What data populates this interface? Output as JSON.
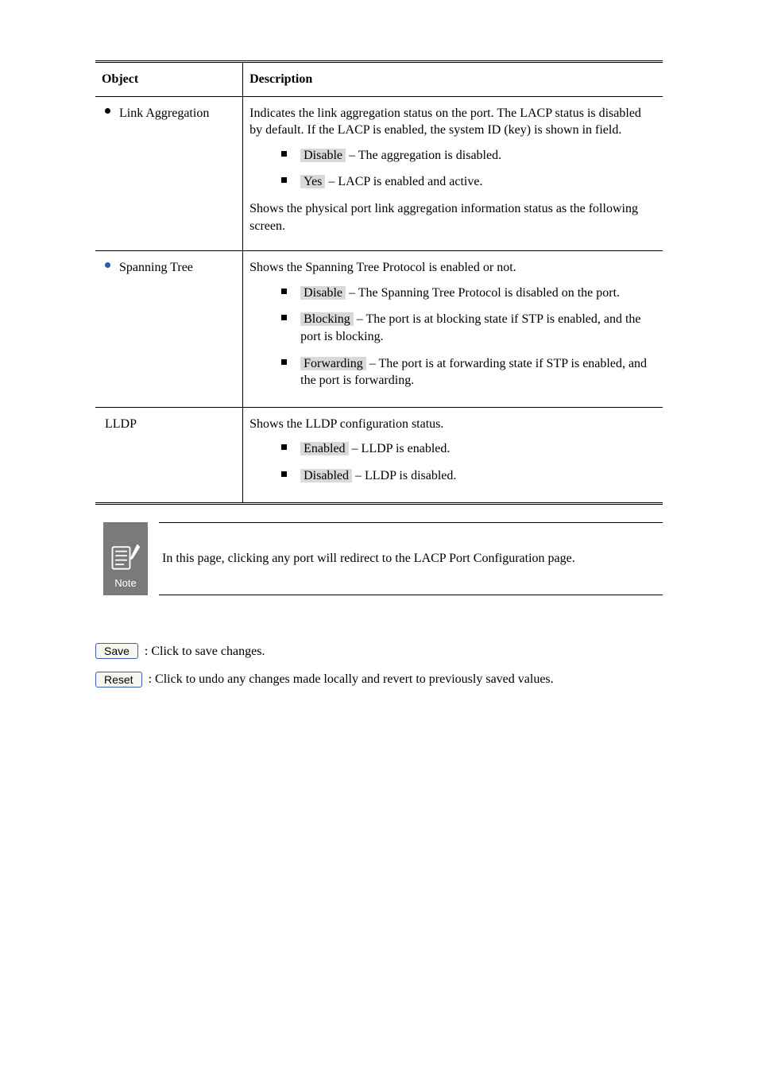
{
  "colors": {
    "text": "#000000",
    "bg": "#ffffff",
    "border": "#000000",
    "shade": "#d9d9d9",
    "note_bg": "#7a7a7a",
    "note_fg": "#ffffff",
    "blue_bullet": "#2b5aa8",
    "btn_border": "#3a5fb8",
    "btn_bg": "#f7f7f0"
  },
  "table": {
    "head_object": "Object",
    "head_description": "Description",
    "rows": [
      {
        "object_prefix": "",
        "object": "Link Aggregation",
        "object_bullet": "black",
        "desc_intro": "Indicates the link aggregation status on the port. The LACP status is disabled by default. If the LACP is enabled, the system ID (key) is shown in field.",
        "desc_tail": "Shows the physical port link aggregation information status as the following screen.",
        "items": [
          {
            "key": "Disable",
            "rest": " – The aggregation is disabled."
          },
          {
            "key": "Yes",
            "rest": " – LACP is enabled and active."
          }
        ]
      },
      {
        "object_prefix": "",
        "object": "Spanning Tree",
        "object_bullet": "blue",
        "desc_intro": "Shows the Spanning Tree Protocol is enabled or not.",
        "desc_tail": "",
        "items": [
          {
            "key": "Disable",
            "rest": " – The Spanning Tree Protocol is disabled on the port."
          },
          {
            "key": "Blocking",
            "rest": " – The port is at blocking state if STP is enabled, and the port is blocking."
          },
          {
            "key": "Forwarding",
            "rest": " – The port is at forwarding state if STP is enabled, and the port is forwarding."
          }
        ]
      },
      {
        "object_prefix": "",
        "object": "LLDP",
        "object_bullet": "",
        "desc_intro": "Shows the LLDP configuration status.",
        "desc_tail": "",
        "items": [
          {
            "key": "Enabled",
            "rest": " – LLDP is enabled."
          },
          {
            "key": "Disabled",
            "rest": " – LLDP is disabled."
          }
        ]
      }
    ]
  },
  "note": {
    "label": "Note",
    "text": "In this page, clicking any port will redirect to the LACP Port Configuration page."
  },
  "buttons": {
    "save": {
      "label": "Save",
      "text": ": Click to save changes."
    },
    "reset": {
      "label": "Reset",
      "text": ": Click to undo any changes made locally and revert to previously saved values."
    }
  }
}
